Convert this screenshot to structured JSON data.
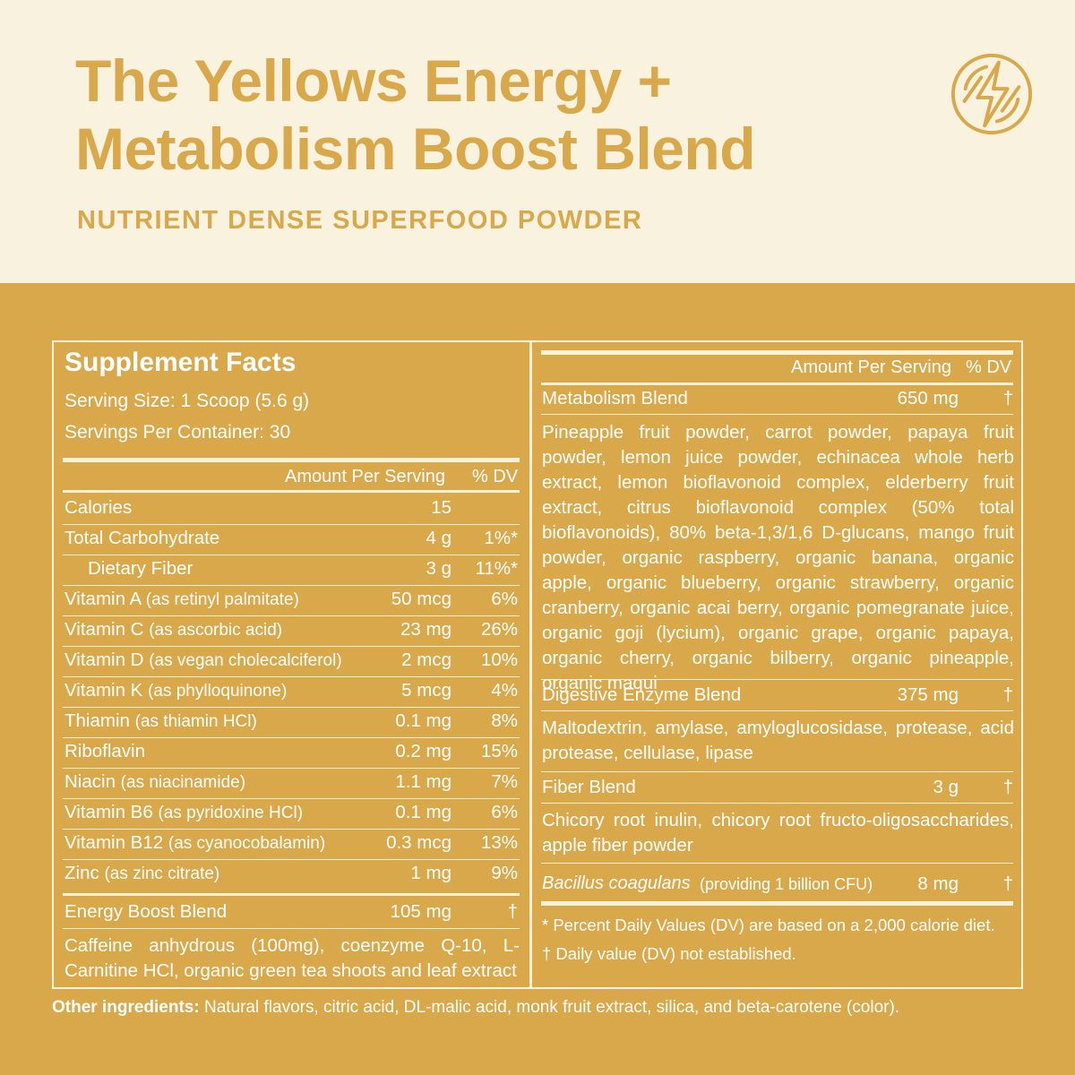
{
  "header": {
    "title_line1": "The Yellows Energy +",
    "title_line2": "Metabolism Boost Blend",
    "subtitle": "NUTRIENT DENSE SUPERFOOD POWDER",
    "logo_icon": "lightning-bolt-icon"
  },
  "colors": {
    "cream": "#f8f2de",
    "gold": "#d8a84a",
    "white": "#ffffff"
  },
  "facts": {
    "title": "Supplement Facts",
    "serving_size": "Serving Size: 1 Scoop (5.6 g)",
    "servings_per_container": "Servings Per Container: 30",
    "col_amount": "Amount Per Serving",
    "col_dv": "% DV",
    "rows": [
      {
        "name": "Calories",
        "note": "",
        "amount": "15",
        "dv": ""
      },
      {
        "name": "Total Carbohydrate",
        "note": "",
        "amount": "4 g",
        "dv": "1%*"
      },
      {
        "name": "Dietary Fiber",
        "note": "",
        "amount": "3 g",
        "dv": "11%*"
      },
      {
        "name": "Vitamin A",
        "note": "(as retinyl palmitate)",
        "amount": "50 mcg",
        "dv": "6%"
      },
      {
        "name": "Vitamin C",
        "note": "(as ascorbic acid)",
        "amount": "23 mg",
        "dv": "26%"
      },
      {
        "name": "Vitamin D",
        "note": "(as  vegan cholecalciferol)",
        "amount": "2 mcg",
        "dv": "10%"
      },
      {
        "name": "Vitamin K",
        "note": "(as phylloquinone)",
        "amount": "5 mcg",
        "dv": "4%"
      },
      {
        "name": "Thiamin",
        "note": "(as thiamin HCl)",
        "amount": "0.1 mg",
        "dv": "8%"
      },
      {
        "name": "Riboflavin",
        "note": "",
        "amount": "0.2 mg",
        "dv": "15%"
      },
      {
        "name": "Niacin",
        "note": "(as niacinamide)",
        "amount": "1.1 mg",
        "dv": "7%"
      },
      {
        "name": "Vitamin B6",
        "note": "(as pyridoxine HCl)",
        "amount": "0.1 mg",
        "dv": "6%"
      },
      {
        "name": "Vitamin B12",
        "note": "(as cyanocobalamin)",
        "amount": "0.3 mcg",
        "dv": "13%"
      },
      {
        "name": "Zinc",
        "note": "(as zinc citrate)",
        "amount": "1 mg",
        "dv": "9%"
      }
    ],
    "energy_blend": {
      "name": "Energy Boost Blend",
      "amount": "105 mg",
      "dv": "†",
      "ingredients": "Caffeine anhydrous (100mg), coenzyme Q-10, L-Carnitine HCl, organic green tea shoots and leaf extract"
    },
    "metabolism_blend": {
      "name": "Metabolism Blend",
      "amount": "650 mg",
      "dv": "†",
      "ingredients": "Pineapple fruit powder, carrot powder, papaya fruit powder, lemon juice powder, echinacea whole herb extract, lemon bioflavonoid complex, elderberry fruit extract, citrus bioflavonoid complex (50% total bioflavonoids), 80% beta-1,3/1,6 D-glucans, mango fruit powder, organic raspberry, organic banana, organic apple, organic blueberry, organic strawberry, organic cranberry, organic acai berry, organic pomegranate juice, organic goji (lycium), organic grape, organic papaya, organic cherry, organic bilberry, organic pineapple, organic maqui"
    },
    "digestive_blend": {
      "name": "Digestive Enzyme Blend",
      "amount": "375 mg",
      "dv": "†",
      "ingredients": "Maltodextrin, amylase, amyloglucosidase, protease, acid protease, cellulase, lipase"
    },
    "fiber_blend": {
      "name": "Fiber Blend",
      "amount": "3 g",
      "dv": "†",
      "ingredients": "Chicory root inulin, chicory root fructo-oligosaccharides, apple fiber powder"
    },
    "probiotic": {
      "name": "Bacillus coagulans",
      "note": "(providing 1 billion CFU)",
      "amount": "8 mg",
      "dv": "†"
    },
    "footnote_1": "* Percent Daily Values (DV) are based on a 2,000 calorie diet.",
    "footnote_2": "† Daily value (DV) not established."
  },
  "other_ingredients": {
    "label": "Other ingredients:",
    "text": "Natural flavors, citric acid, DL-malic acid, monk fruit extract, silica, and beta-carotene (color)."
  }
}
